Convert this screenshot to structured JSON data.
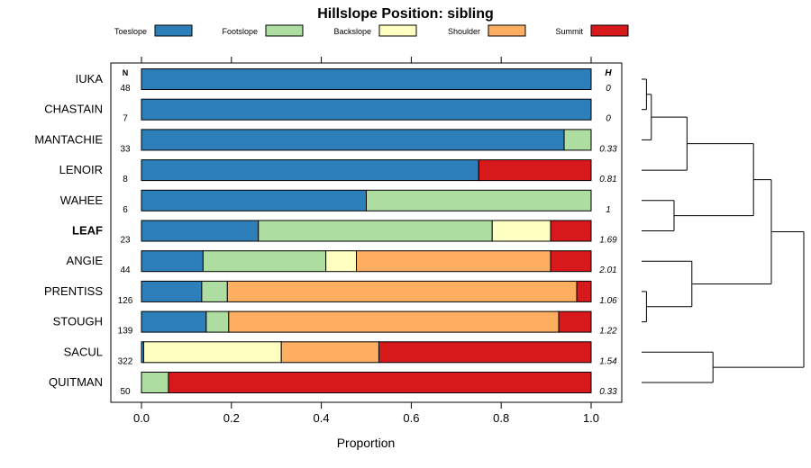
{
  "chart_data": {
    "type": "stacked-bar-horizontal",
    "title": "Hillslope Position: sibling",
    "xlabel": "Proportion",
    "xlim": [
      0,
      1
    ],
    "xticks": [
      "0.0",
      "0.2",
      "0.4",
      "0.6",
      "0.8",
      "1.0"
    ],
    "n_header": "N",
    "h_header": "H",
    "highlight": "LEAF",
    "legend": [
      {
        "name": "Toeslope",
        "color": "#2c7fb8"
      },
      {
        "name": "Footslope",
        "color": "#addda0"
      },
      {
        "name": "Backslope",
        "color": "#ffffc2"
      },
      {
        "name": "Shoulder",
        "color": "#fdae61"
      },
      {
        "name": "Summit",
        "color": "#d7191c"
      }
    ],
    "series": [
      {
        "name": "Toeslope",
        "values": [
          1.0,
          1.0,
          0.94,
          0.75,
          0.5,
          0.26,
          0.137,
          0.134,
          0.144,
          0.005,
          0.0
        ]
      },
      {
        "name": "Footslope",
        "values": [
          0.0,
          0.0,
          0.06,
          0.0,
          0.5,
          0.52,
          0.273,
          0.057,
          0.05,
          0.0,
          0.06
        ]
      },
      {
        "name": "Backslope",
        "values": [
          0.0,
          0.0,
          0.0,
          0.0,
          0.0,
          0.13,
          0.068,
          0.0,
          0.0,
          0.306,
          0.0
        ]
      },
      {
        "name": "Shoulder",
        "values": [
          0.0,
          0.0,
          0.0,
          0.0,
          0.0,
          0.0,
          0.432,
          0.777,
          0.734,
          0.217,
          0.0
        ]
      },
      {
        "name": "Summit",
        "values": [
          0.0,
          0.0,
          0.0,
          0.25,
          0.0,
          0.09,
          0.09,
          0.032,
          0.072,
          0.472,
          0.94
        ]
      }
    ],
    "rows": [
      {
        "label": "IUKA",
        "n": "48",
        "h": "0"
      },
      {
        "label": "CHASTAIN",
        "n": "7",
        "h": "0"
      },
      {
        "label": "MANTACHIE",
        "n": "33",
        "h": "0.33"
      },
      {
        "label": "LENOIR",
        "n": "8",
        "h": "0.81"
      },
      {
        "label": "WAHEE",
        "n": "6",
        "h": "1"
      },
      {
        "label": "LEAF",
        "n": "23",
        "h": "1.69"
      },
      {
        "label": "ANGIE",
        "n": "44",
        "h": "2.01"
      },
      {
        "label": "PRENTISS",
        "n": "126",
        "h": "1.06"
      },
      {
        "label": "STOUGH",
        "n": "139",
        "h": "1.22"
      },
      {
        "label": "SACUL",
        "n": "322",
        "h": "1.54"
      },
      {
        "label": "QUITMAN",
        "n": "50",
        "h": "0.33"
      }
    ],
    "dendrogram": {
      "leaves": [
        "IUKA",
        "CHASTAIN",
        "MANTACHIE",
        "LENOIR",
        "WAHEE",
        "LEAF",
        "ANGIE",
        "PRENTISS",
        "STOUGH",
        "SACUL",
        "QUITMAN"
      ],
      "merges": [
        {
          "a": "IUKA",
          "b": "CHASTAIN",
          "height": 0.03
        },
        {
          "a": "m1",
          "b": "MANTACHIE",
          "height": 0.06
        },
        {
          "a": "PRENTISS",
          "b": "STOUGH",
          "height": 0.03
        },
        {
          "a": "WAHEE",
          "b": "LEAF",
          "height": 0.2
        },
        {
          "a": "m2",
          "b": "LENOIR",
          "height": 0.28
        },
        {
          "a": "ANGIE",
          "b": "m3",
          "height": 0.31
        },
        {
          "a": "SACUL",
          "b": "QUITMAN",
          "height": 0.44
        },
        {
          "a": "m5",
          "b": "m4",
          "height": 0.69
        },
        {
          "a": "m8",
          "b": "m6",
          "height": 0.8
        },
        {
          "a": "m9",
          "b": "m7",
          "height": 1.0
        }
      ]
    }
  }
}
